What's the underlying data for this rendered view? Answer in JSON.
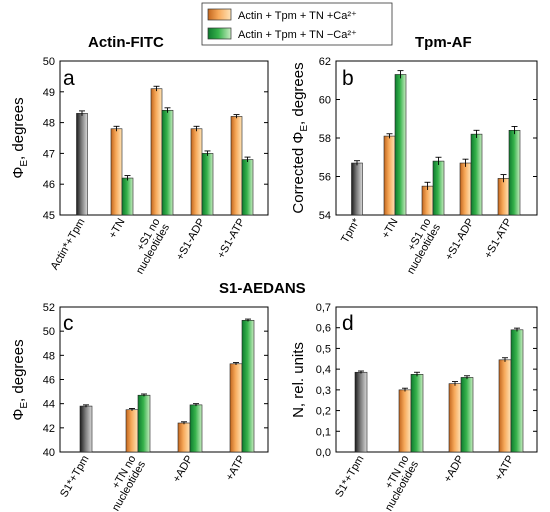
{
  "legend": {
    "items": [
      {
        "label": "Actin + Tpm + TN +Ca²⁺",
        "colors": [
          "#c2661e",
          "#f7a95a",
          "#ffe4b8"
        ]
      },
      {
        "label": "Actin + Tpm + TN −Ca²⁺",
        "colors": [
          "#0e7a2e",
          "#36b24b",
          "#c9edc2"
        ]
      }
    ]
  },
  "section_titles": {
    "top_left": "Actin-FITC",
    "top_right": "Tpm-AF",
    "bottom": "S1-AEDANS"
  },
  "colors": {
    "gray": [
      "#1c1c1c",
      "#7a7a7a",
      "#d9d9d9"
    ],
    "orange": [
      "#c2661e",
      "#f7a95a",
      "#ffe4b8"
    ],
    "green": [
      "#0e7a2e",
      "#36b24b",
      "#c9edc2"
    ]
  },
  "chart_data": [
    {
      "type": "bar",
      "letter": "a",
      "ylabel": "Φ_E, degrees",
      "ylim": [
        45,
        50
      ],
      "yticks": [
        "45",
        "46",
        "47",
        "48",
        "49",
        "50"
      ],
      "categories": [
        {
          "label": [
            "Actin*+Tpm"
          ],
          "values": [
            48.3
          ],
          "errors": [
            0.08
          ],
          "colors": [
            "gray"
          ]
        },
        {
          "label": [
            "+TN"
          ],
          "values": [
            47.8,
            46.2
          ],
          "errors": [
            0.08,
            0.08
          ],
          "colors": [
            "orange",
            "green"
          ]
        },
        {
          "label": [
            "+S1 no",
            "nucleotides"
          ],
          "values": [
            49.1,
            48.4
          ],
          "errors": [
            0.08,
            0.08
          ],
          "colors": [
            "orange",
            "green"
          ]
        },
        {
          "label": [
            "+S1-ADP"
          ],
          "values": [
            47.8,
            47.0
          ],
          "errors": [
            0.08,
            0.08
          ],
          "colors": [
            "orange",
            "green"
          ]
        },
        {
          "label": [
            "+S1-ATP"
          ],
          "values": [
            48.2,
            46.8
          ],
          "errors": [
            0.06,
            0.08
          ],
          "colors": [
            "orange",
            "green"
          ]
        }
      ]
    },
    {
      "type": "bar",
      "letter": "b",
      "ylabel": "Corrected Φ_E, degrees",
      "ylim": [
        54,
        62
      ],
      "yticks": [
        "54",
        "56",
        "58",
        "60",
        "62"
      ],
      "categories": [
        {
          "label": [
            "Tpm*"
          ],
          "values": [
            56.7
          ],
          "errors": [
            0.12
          ],
          "colors": [
            "gray"
          ]
        },
        {
          "label": [
            "+TN"
          ],
          "values": [
            58.1,
            61.3
          ],
          "errors": [
            0.12,
            0.2
          ],
          "colors": [
            "orange",
            "green"
          ]
        },
        {
          "label": [
            "+S1 no",
            "nucleotides"
          ],
          "values": [
            55.5,
            56.8
          ],
          "errors": [
            0.2,
            0.2
          ],
          "colors": [
            "orange",
            "green"
          ]
        },
        {
          "label": [
            "+S1-ADP"
          ],
          "values": [
            56.7,
            58.2
          ],
          "errors": [
            0.2,
            0.2
          ],
          "colors": [
            "orange",
            "green"
          ]
        },
        {
          "label": [
            "+S1-ATP"
          ],
          "values": [
            55.9,
            58.4
          ],
          "errors": [
            0.2,
            0.2
          ],
          "colors": [
            "orange",
            "green"
          ]
        }
      ]
    },
    {
      "type": "bar",
      "letter": "c",
      "ylabel": "Φ_E, degrees",
      "ylim": [
        40,
        52
      ],
      "yticks": [
        "40",
        "42",
        "44",
        "46",
        "48",
        "50",
        "52"
      ],
      "categories": [
        {
          "label": [
            "S1*+Tpm"
          ],
          "values": [
            43.8
          ],
          "errors": [
            0.1
          ],
          "colors": [
            "gray"
          ]
        },
        {
          "label": [
            "+TN no",
            "nucleotides"
          ],
          "values": [
            43.5,
            44.7
          ],
          "errors": [
            0.1,
            0.1
          ],
          "colors": [
            "orange",
            "green"
          ]
        },
        {
          "label": [
            "+ADP"
          ],
          "values": [
            42.4,
            43.9
          ],
          "errors": [
            0.1,
            0.1
          ],
          "colors": [
            "orange",
            "green"
          ]
        },
        {
          "label": [
            "+ATP"
          ],
          "values": [
            47.3,
            50.9
          ],
          "errors": [
            0.1,
            0.1
          ],
          "colors": [
            "orange",
            "green"
          ]
        }
      ]
    },
    {
      "type": "bar",
      "letter": "d",
      "ylabel": "N, rel. units",
      "ylim": [
        0,
        0.7
      ],
      "yticks": [
        "0,0",
        "0,1",
        "0,2",
        "0,3",
        "0,4",
        "0,5",
        "0,6",
        "0,7"
      ],
      "categories": [
        {
          "label": [
            "S1*+Tpm"
          ],
          "values": [
            0.385
          ],
          "errors": [
            0.006
          ],
          "colors": [
            "gray"
          ]
        },
        {
          "label": [
            "+TN no",
            "nucleotides"
          ],
          "values": [
            0.3,
            0.375
          ],
          "errors": [
            0.008,
            0.01
          ],
          "colors": [
            "orange",
            "green"
          ]
        },
        {
          "label": [
            "+ADP"
          ],
          "values": [
            0.33,
            0.36
          ],
          "errors": [
            0.01,
            0.008
          ],
          "colors": [
            "orange",
            "green"
          ]
        },
        {
          "label": [
            "+ATP"
          ],
          "values": [
            0.445,
            0.59
          ],
          "errors": [
            0.01,
            0.008
          ],
          "colors": [
            "orange",
            "green"
          ]
        }
      ]
    }
  ]
}
